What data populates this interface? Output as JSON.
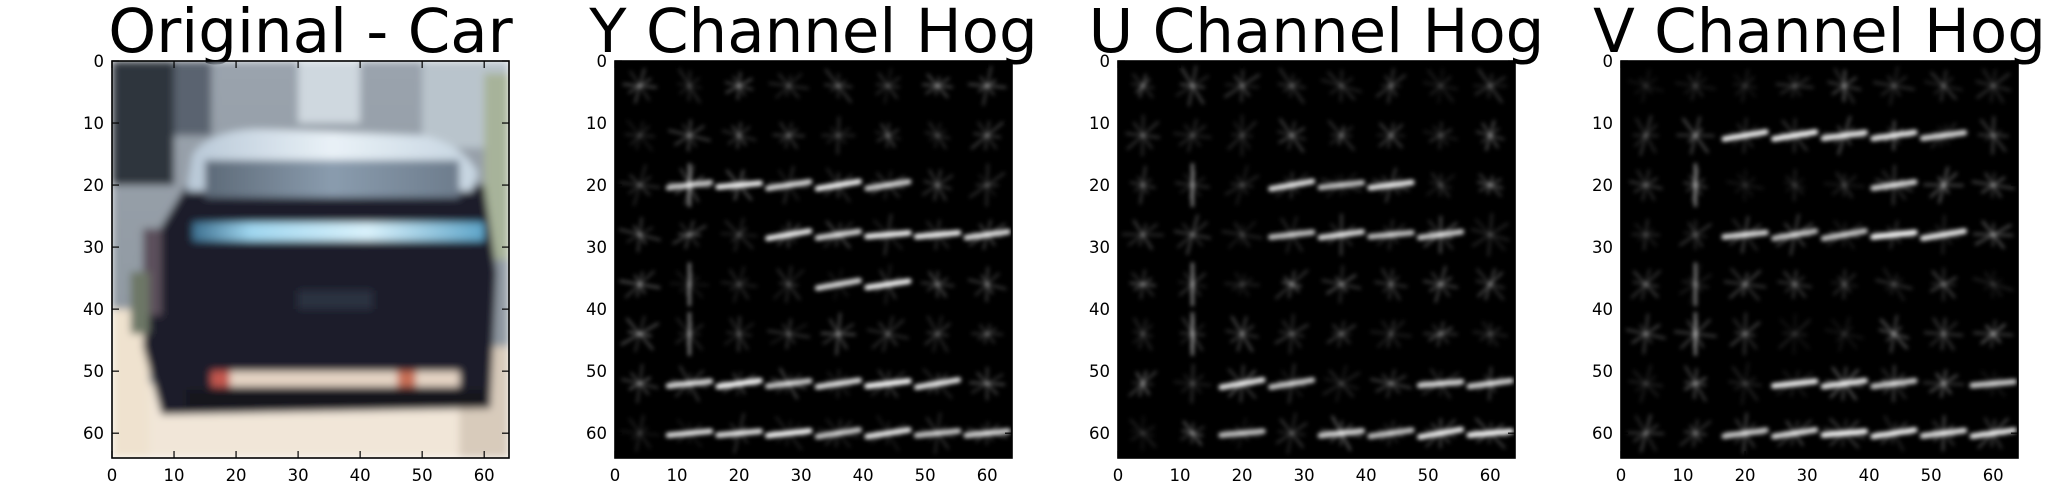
{
  "chart_data": [
    {
      "type": "image",
      "title": "Original - Car",
      "xlim": [
        0,
        64
      ],
      "ylim": [
        64,
        0
      ],
      "xticks": [
        0,
        10,
        20,
        30,
        40,
        50,
        60
      ],
      "yticks": [
        0,
        10,
        20,
        30,
        40,
        50,
        60
      ],
      "grid": false
    },
    {
      "type": "heatmap",
      "title": "Y Channel Hog",
      "xlim": [
        0,
        64
      ],
      "ylim": [
        64,
        0
      ],
      "xticks": [
        0,
        10,
        20,
        30,
        40,
        50,
        60
      ],
      "yticks": [
        0,
        10,
        20,
        30,
        40,
        50,
        60
      ],
      "grid": false,
      "colormap": "gray"
    },
    {
      "type": "heatmap",
      "title": "U Channel Hog",
      "xlim": [
        0,
        64
      ],
      "ylim": [
        64,
        0
      ],
      "xticks": [
        0,
        10,
        20,
        30,
        40,
        50,
        60
      ],
      "yticks": [
        0,
        10,
        20,
        30,
        40,
        50,
        60
      ],
      "grid": false,
      "colormap": "gray"
    },
    {
      "type": "heatmap",
      "title": "V Channel Hog",
      "xlim": [
        0,
        64
      ],
      "ylim": [
        64,
        0
      ],
      "xticks": [
        0,
        10,
        20,
        30,
        40,
        50,
        60
      ],
      "yticks": [
        0,
        10,
        20,
        30,
        40,
        50,
        60
      ],
      "grid": false,
      "colormap": "gray"
    }
  ]
}
